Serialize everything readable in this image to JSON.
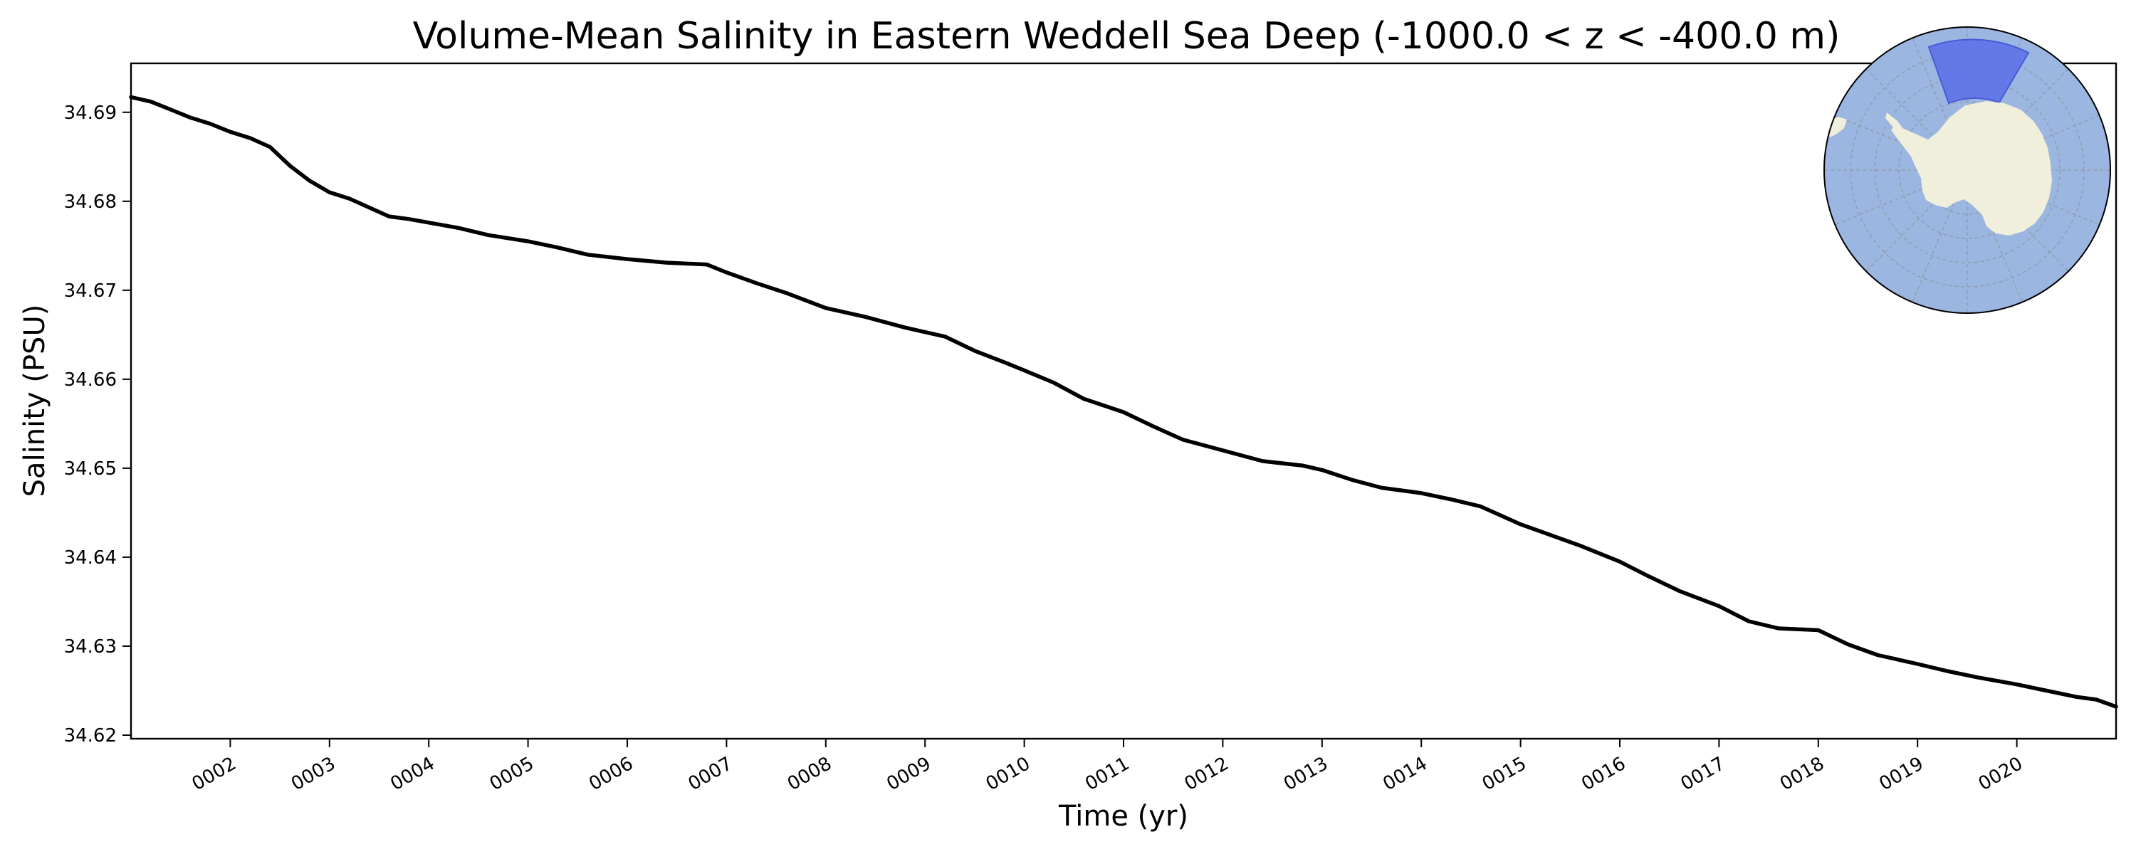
{
  "chart_data": {
    "type": "line",
    "title": "Volume-Mean Salinity in Eastern Weddell Sea Deep (-1000.0 < z < -400.0 m)",
    "xlabel": "Time (yr)",
    "ylabel": "Salinity (PSU)",
    "xlim": [
      1.0,
      21.0
    ],
    "ylim": [
      34.6196,
      34.6955
    ],
    "x_ticks": [
      2,
      3,
      4,
      5,
      6,
      7,
      8,
      9,
      10,
      11,
      12,
      13,
      14,
      15,
      16,
      17,
      18,
      19,
      20
    ],
    "x_tick_labels": [
      "0002",
      "0003",
      "0004",
      "0005",
      "0006",
      "0007",
      "0008",
      "0009",
      "0010",
      "0011",
      "0012",
      "0013",
      "0014",
      "0015",
      "0016",
      "0017",
      "0018",
      "0019",
      "0020"
    ],
    "y_ticks": [
      34.62,
      34.63,
      34.64,
      34.65,
      34.66,
      34.67,
      34.68,
      34.69
    ],
    "y_tick_labels": [
      "34.62",
      "34.63",
      "34.64",
      "34.65",
      "34.66",
      "34.67",
      "34.68",
      "34.69"
    ],
    "grid": false,
    "series": [
      {
        "color": "#000000",
        "x": [
          1.0,
          1.2,
          1.4,
          1.6,
          1.8,
          2.0,
          2.2,
          2.4,
          2.6,
          2.8,
          3.0,
          3.2,
          3.4,
          3.6,
          3.8,
          4.0,
          4.3,
          4.6,
          5.0,
          5.3,
          5.6,
          6.0,
          6.4,
          6.8,
          7.0,
          7.3,
          7.6,
          8.0,
          8.4,
          8.8,
          9.2,
          9.5,
          9.8,
          10.0,
          10.3,
          10.6,
          11.0,
          11.3,
          11.6,
          12.0,
          12.4,
          12.8,
          13.0,
          13.3,
          13.6,
          14.0,
          14.3,
          14.6,
          15.0,
          15.3,
          15.6,
          16.0,
          16.3,
          16.6,
          17.0,
          17.3,
          17.6,
          18.0,
          18.3,
          18.6,
          19.0,
          19.3,
          19.6,
          20.0,
          20.3,
          20.6,
          20.8,
          21.0
        ],
        "y": [
          34.6917,
          34.6912,
          34.6903,
          34.6894,
          34.6887,
          34.6878,
          34.6871,
          34.6861,
          34.684,
          34.6823,
          34.681,
          34.6803,
          34.6793,
          34.6783,
          34.678,
          34.6776,
          34.677,
          34.6762,
          34.6755,
          34.6748,
          34.674,
          34.6735,
          34.6731,
          34.6729,
          34.672,
          34.6708,
          34.6697,
          34.668,
          34.667,
          34.6658,
          34.6648,
          34.6632,
          34.6619,
          34.661,
          34.6596,
          34.6578,
          34.6563,
          34.6547,
          34.6532,
          34.652,
          34.6508,
          34.6503,
          34.6498,
          34.6487,
          34.6478,
          34.6472,
          34.6465,
          34.6457,
          34.6437,
          34.6425,
          34.6413,
          34.6395,
          34.6378,
          34.6362,
          34.6345,
          34.6328,
          34.632,
          34.6318,
          34.6302,
          34.629,
          34.628,
          34.6272,
          34.6265,
          34.6257,
          34.625,
          34.6243,
          34.624,
          34.6232
        ]
      }
    ]
  },
  "inset_map": {
    "ocean_color": "#9bb6e0",
    "land_color": "#efefdc",
    "region_color": "#5b6fe8"
  }
}
